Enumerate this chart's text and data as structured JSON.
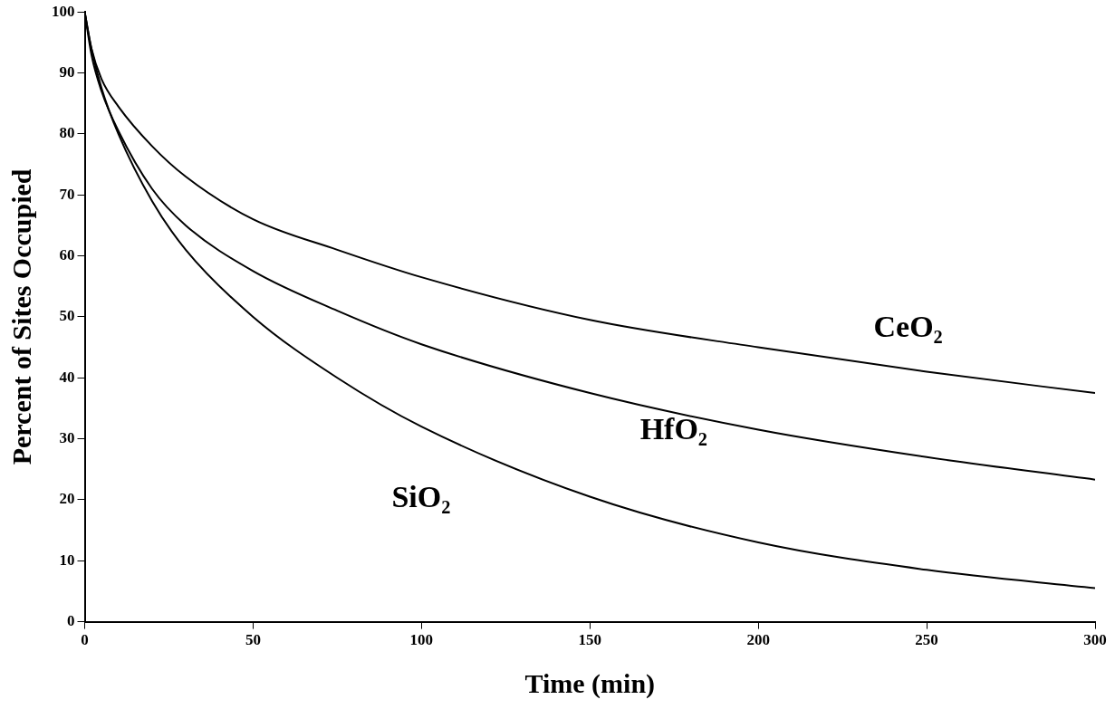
{
  "chart_data": {
    "type": "line",
    "xlabel": "Time (min)",
    "ylabel": "Percent of Sites Occupied",
    "xlim": [
      0,
      300
    ],
    "xticks": [
      0,
      50,
      100,
      150,
      200,
      250,
      300
    ],
    "ylim": [
      0,
      100
    ],
    "yticks": [
      0,
      10,
      20,
      30,
      40,
      50,
      60,
      70,
      80,
      90,
      100
    ],
    "grid": false,
    "legend": false,
    "marker": "none",
    "line_style": "solid",
    "series": [
      {
        "name": "CeO₂",
        "color": "#000000",
        "x": [
          0,
          2,
          5,
          10,
          20,
          30,
          50,
          75,
          100,
          150,
          200,
          250,
          300
        ],
        "values": [
          100,
          94,
          89,
          84.5,
          78,
          73,
          66,
          61,
          56.5,
          49.5,
          45,
          41,
          37.5
        ]
      },
      {
        "name": "HfO₂",
        "color": "#000000",
        "x": [
          0,
          2,
          5,
          10,
          20,
          30,
          50,
          75,
          100,
          150,
          200,
          250,
          300
        ],
        "values": [
          100,
          93,
          87,
          80.5,
          71,
          65,
          57.5,
          51,
          45.5,
          37.5,
          31.5,
          27,
          23.3
        ]
      },
      {
        "name": "SiO₂",
        "color": "#000000",
        "x": [
          0,
          2,
          5,
          10,
          20,
          30,
          50,
          75,
          100,
          150,
          200,
          250,
          300
        ],
        "values": [
          100,
          94,
          87.5,
          80,
          69,
          61,
          50,
          40,
          32,
          20.5,
          13,
          8.5,
          5.5
        ]
      }
    ]
  }
}
